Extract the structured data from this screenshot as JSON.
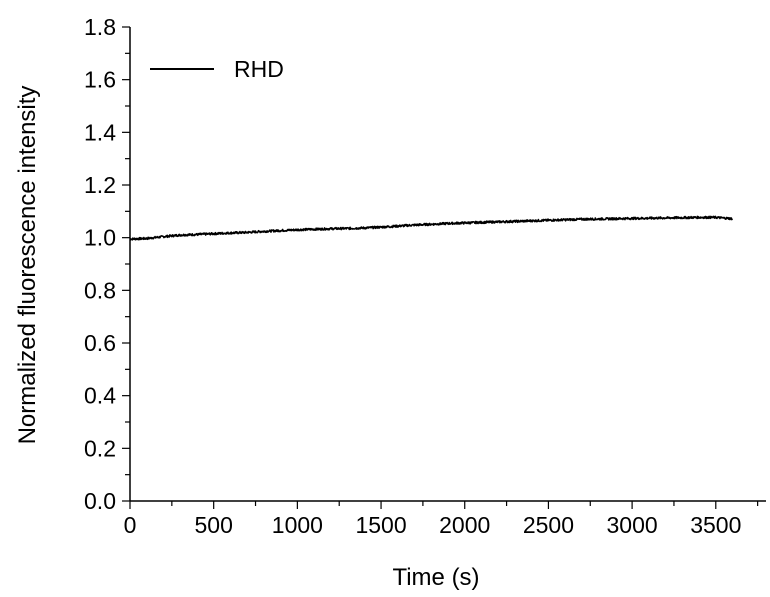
{
  "chart_data": {
    "type": "line",
    "xlabel": "Time (s)",
    "ylabel": "Normalized fluorescence intensity",
    "xlim": [
      0,
      3800
    ],
    "ylim": [
      0.0,
      1.8
    ],
    "x_ticks": [
      "0",
      "500",
      "1000",
      "1500",
      "2000",
      "2500",
      "3000",
      "3500"
    ],
    "y_ticks": [
      "0.0",
      "0.2",
      "0.4",
      "0.6",
      "0.8",
      "1.0",
      "1.2",
      "1.4",
      "1.6",
      "1.8"
    ],
    "legend": {
      "placement": "top-left"
    },
    "series": [
      {
        "name": "RHD",
        "color": "#000000",
        "x": [
          0,
          100,
          200,
          300,
          400,
          500,
          600,
          700,
          800,
          900,
          1000,
          1100,
          1200,
          1300,
          1400,
          1500,
          1600,
          1700,
          1800,
          1900,
          2000,
          2100,
          2200,
          2300,
          2400,
          2500,
          2600,
          2700,
          2800,
          2900,
          3000,
          3100,
          3200,
          3300,
          3400,
          3500,
          3600
        ],
        "y": [
          0.995,
          0.997,
          1.004,
          1.01,
          1.012,
          1.015,
          1.018,
          1.02,
          1.024,
          1.027,
          1.03,
          1.032,
          1.034,
          1.035,
          1.037,
          1.04,
          1.044,
          1.048,
          1.051,
          1.054,
          1.056,
          1.058,
          1.06,
          1.062,
          1.064,
          1.066,
          1.068,
          1.07,
          1.071,
          1.072,
          1.073,
          1.074,
          1.075,
          1.076,
          1.077,
          1.077,
          1.072
        ]
      }
    ]
  }
}
